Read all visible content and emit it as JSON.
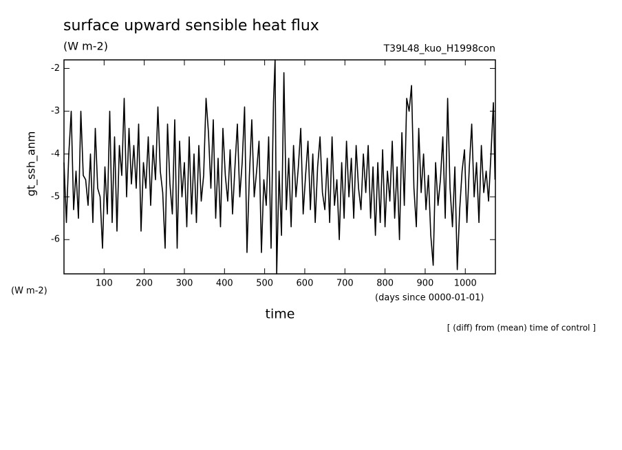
{
  "chart_data": {
    "type": "line",
    "title": "surface upward sensible heat flux",
    "y_units": "(W m-2)",
    "x_units_left": "(W m-2)",
    "run_label": "T39L48_kuo_H1998con",
    "y_label": "gt_ssh_anm",
    "x_label": "time",
    "x_units": "(days since 0000-01-01)",
    "note": "[ (diff) from (mean) time of control ]",
    "xlim": [
      0,
      1075
    ],
    "ylim": [
      -6.8,
      -1.8
    ],
    "xticks": [
      100,
      200,
      300,
      400,
      500,
      600,
      700,
      800,
      900,
      1000
    ],
    "yticks": [
      -6,
      -5,
      -4,
      -3,
      -2
    ],
    "grid": false,
    "series": [
      {
        "name": "gt_ssh_anm",
        "color": "#000000",
        "x": [
          0,
          6,
          12,
          18,
          24,
          30,
          36,
          42,
          48,
          54,
          60,
          66,
          72,
          78,
          84,
          90,
          96,
          102,
          108,
          114,
          120,
          126,
          132,
          138,
          144,
          150,
          156,
          162,
          168,
          174,
          180,
          186,
          192,
          198,
          204,
          210,
          216,
          222,
          228,
          234,
          240,
          246,
          252,
          258,
          264,
          270,
          276,
          282,
          288,
          294,
          300,
          306,
          312,
          318,
          324,
          330,
          336,
          342,
          348,
          354,
          360,
          366,
          372,
          378,
          384,
          390,
          396,
          402,
          408,
          414,
          420,
          426,
          432,
          438,
          444,
          450,
          456,
          462,
          468,
          474,
          480,
          486,
          492,
          498,
          504,
          510,
          516,
          522,
          526,
          530,
          536,
          542,
          548,
          554,
          560,
          566,
          572,
          578,
          584,
          590,
          596,
          602,
          608,
          614,
          620,
          626,
          632,
          638,
          644,
          650,
          656,
          662,
          668,
          674,
          680,
          686,
          692,
          698,
          704,
          710,
          716,
          722,
          728,
          734,
          740,
          746,
          752,
          758,
          764,
          770,
          776,
          782,
          788,
          794,
          800,
          806,
          812,
          818,
          824,
          830,
          836,
          842,
          848,
          854,
          860,
          866,
          872,
          878,
          884,
          890,
          896,
          902,
          908,
          914,
          920,
          926,
          932,
          938,
          944,
          950,
          956,
          962,
          968,
          974,
          980,
          986,
          992,
          998,
          1004,
          1010,
          1016,
          1022,
          1028,
          1034,
          1040,
          1046,
          1052,
          1058,
          1064,
          1070,
          1074
        ],
        "values": [
          -4.2,
          -5.6,
          -4.0,
          -3.0,
          -5.3,
          -4.4,
          -5.5,
          -3.0,
          -4.5,
          -4.6,
          -5.2,
          -4.0,
          -5.6,
          -3.4,
          -4.8,
          -5.0,
          -6.2,
          -4.3,
          -5.4,
          -3.0,
          -5.6,
          -3.6,
          -5.8,
          -3.8,
          -4.5,
          -2.7,
          -5.0,
          -3.4,
          -4.7,
          -3.8,
          -4.8,
          -3.3,
          -5.8,
          -4.2,
          -4.8,
          -3.6,
          -5.2,
          -3.8,
          -4.6,
          -2.9,
          -4.4,
          -4.9,
          -6.2,
          -3.3,
          -4.7,
          -5.4,
          -3.2,
          -6.2,
          -3.7,
          -5.0,
          -4.2,
          -5.7,
          -3.6,
          -5.4,
          -4.0,
          -5.6,
          -3.8,
          -5.1,
          -4.5,
          -2.7,
          -3.5,
          -4.8,
          -3.2,
          -5.5,
          -4.1,
          -5.7,
          -3.4,
          -4.5,
          -5.1,
          -3.9,
          -5.4,
          -4.3,
          -3.3,
          -5.0,
          -4.2,
          -2.9,
          -6.3,
          -4.5,
          -3.2,
          -5.0,
          -4.4,
          -3.7,
          -6.3,
          -4.6,
          -5.2,
          -3.6,
          -6.2,
          -2.8,
          -1.8,
          -6.8,
          -4.4,
          -5.9,
          -2.1,
          -5.3,
          -4.1,
          -5.7,
          -3.8,
          -5.0,
          -4.3,
          -3.4,
          -5.4,
          -4.5,
          -3.7,
          -5.3,
          -4.0,
          -5.6,
          -4.3,
          -3.6,
          -4.9,
          -5.3,
          -4.1,
          -5.6,
          -3.6,
          -5.2,
          -4.6,
          -6.0,
          -4.2,
          -5.5,
          -3.7,
          -5.0,
          -4.1,
          -5.5,
          -3.8,
          -4.8,
          -5.3,
          -4.0,
          -4.9,
          -3.8,
          -5.5,
          -4.3,
          -5.9,
          -4.2,
          -5.6,
          -3.9,
          -5.7,
          -4.4,
          -5.1,
          -3.7,
          -5.5,
          -4.3,
          -6.0,
          -3.5,
          -5.2,
          -2.7,
          -3.0,
          -2.4,
          -4.8,
          -5.7,
          -3.4,
          -4.9,
          -4.0,
          -5.3,
          -4.5,
          -5.9,
          -6.6,
          -4.2,
          -5.2,
          -4.6,
          -3.6,
          -5.5,
          -2.7,
          -4.8,
          -5.7,
          -4.3,
          -6.7,
          -5.3,
          -4.4,
          -3.9,
          -5.6,
          -4.3,
          -3.3,
          -5.0,
          -4.2,
          -5.6,
          -3.8,
          -4.9,
          -4.4,
          -5.1,
          -4.0,
          -2.8,
          -4.6
        ]
      }
    ]
  }
}
